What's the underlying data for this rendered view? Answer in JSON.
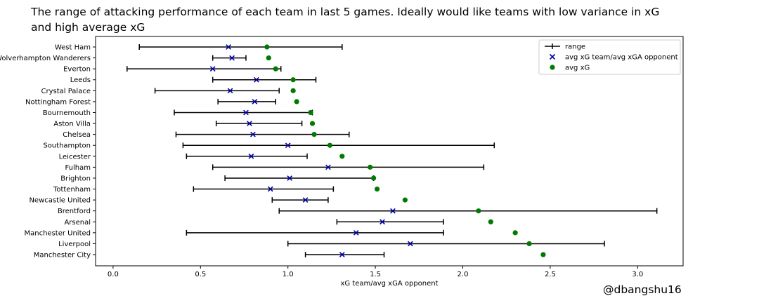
{
  "chart_data": {
    "type": "scatter",
    "title": "The range of attacking performance of each team in last 5 games. Ideally would like teams with low variance in xG and high average xG",
    "xlabel": "xG team/avg xGA opponent",
    "ylabel": "",
    "xlim": [
      -0.1,
      3.26
    ],
    "x_ticks": [
      "0.0",
      "0.5",
      "1.0",
      "1.5",
      "2.0",
      "2.5",
      "3.0"
    ],
    "grid": false,
    "legend_position": "top-right",
    "legend": {
      "range": "range",
      "ratio": "avg xG team/avg xGA opponent",
      "avg": "avg xG"
    },
    "colors": {
      "range": "#000000",
      "ratio": "#0000aa",
      "avg": "#007a00"
    },
    "categories": [
      "West Ham",
      "Wolverhampton Wanderers",
      "Everton",
      "Leeds",
      "Crystal Palace",
      "Nottingham Forest",
      "Bournemouth",
      "Aston Villa",
      "Chelsea",
      "Southampton",
      "Leicester",
      "Fulham",
      "Brighton",
      "Tottenham",
      "Newcastle United",
      "Brentford",
      "Arsenal",
      "Manchester United",
      "Liverpool",
      "Manchester City"
    ],
    "range_min": [
      0.15,
      0.57,
      0.08,
      0.57,
      0.24,
      0.6,
      0.35,
      0.59,
      0.36,
      0.4,
      0.42,
      0.57,
      0.64,
      0.46,
      0.91,
      0.95,
      1.28,
      0.42,
      1.0,
      1.1
    ],
    "range_max": [
      1.31,
      0.76,
      0.96,
      1.16,
      0.95,
      0.93,
      1.14,
      1.08,
      1.35,
      2.18,
      1.11,
      2.12,
      1.49,
      1.26,
      1.23,
      3.11,
      1.89,
      1.89,
      2.81,
      1.55
    ],
    "avg_ratio": [
      0.66,
      0.68,
      0.57,
      0.82,
      0.67,
      0.81,
      0.76,
      0.78,
      0.8,
      1.0,
      0.79,
      1.23,
      1.01,
      0.9,
      1.1,
      1.6,
      1.54,
      1.39,
      1.7,
      1.31
    ],
    "avg_xg": [
      0.88,
      0.89,
      0.93,
      1.03,
      1.03,
      1.05,
      1.13,
      1.14,
      1.15,
      1.24,
      1.31,
      1.47,
      1.49,
      1.51,
      1.67,
      2.09,
      2.16,
      2.3,
      2.38,
      2.46
    ]
  },
  "watermark": "@dbangshu16"
}
